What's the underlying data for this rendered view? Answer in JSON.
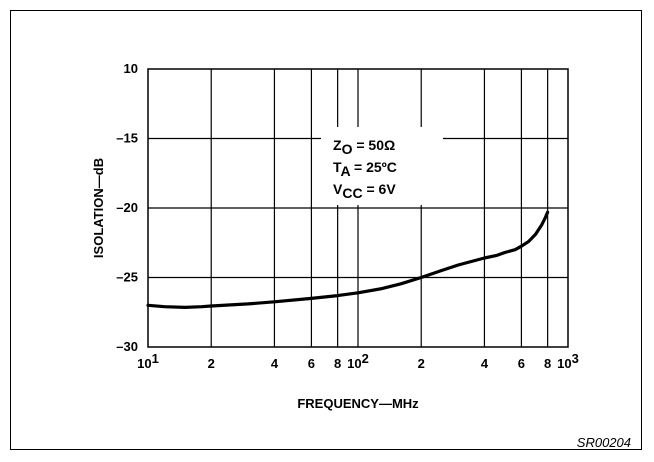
{
  "chart_data": {
    "type": "line",
    "xlabel": "FREQUENCY—MHz",
    "ylabel": "ISOLATION—dB",
    "x_scale": "log",
    "xlim": [
      10,
      1000
    ],
    "ylim": [
      -30,
      -10
    ],
    "grid": true,
    "x_ticks": [
      10,
      20,
      40,
      60,
      80,
      100,
      200,
      400,
      600,
      800,
      1000
    ],
    "x_tick_labels": [
      {
        "base": "10",
        "exp": "1"
      },
      {
        "base": "2"
      },
      {
        "base": "4"
      },
      {
        "base": "6"
      },
      {
        "base": "8"
      },
      {
        "base": "10",
        "exp": "2"
      },
      {
        "base": "2"
      },
      {
        "base": "4"
      },
      {
        "base": "6"
      },
      {
        "base": "8"
      },
      {
        "base": "10",
        "exp": "3"
      }
    ],
    "y_ticks": [
      -10,
      -15,
      -20,
      -25,
      -30
    ],
    "y_tick_labels": [
      "10",
      "–15",
      "–20",
      "–25",
      "–30"
    ],
    "series": [
      {
        "x": [
          10,
          12,
          15,
          18,
          20,
          30,
          40,
          60,
          80,
          100,
          130,
          160,
          200,
          250,
          300,
          400,
          460,
          500,
          560,
          600,
          650,
          700,
          750,
          780,
          800
        ],
        "y": [
          -27.0,
          -27.1,
          -27.15,
          -27.1,
          -27.05,
          -26.9,
          -26.75,
          -26.5,
          -26.3,
          -26.1,
          -25.8,
          -25.45,
          -25.0,
          -24.5,
          -24.1,
          -23.6,
          -23.4,
          -23.2,
          -23.0,
          -22.75,
          -22.4,
          -21.9,
          -21.2,
          -20.7,
          -20.3
        ]
      }
    ],
    "annotations": [
      {
        "main": "Z",
        "sub": "O",
        "rest": " = 50Ω"
      },
      {
        "main": "T",
        "sub": "A",
        "rest": " = 25ºC"
      },
      {
        "main": "V",
        "sub": "CC",
        "rest": " = 6V"
      }
    ]
  },
  "figure_id": "SR00204"
}
